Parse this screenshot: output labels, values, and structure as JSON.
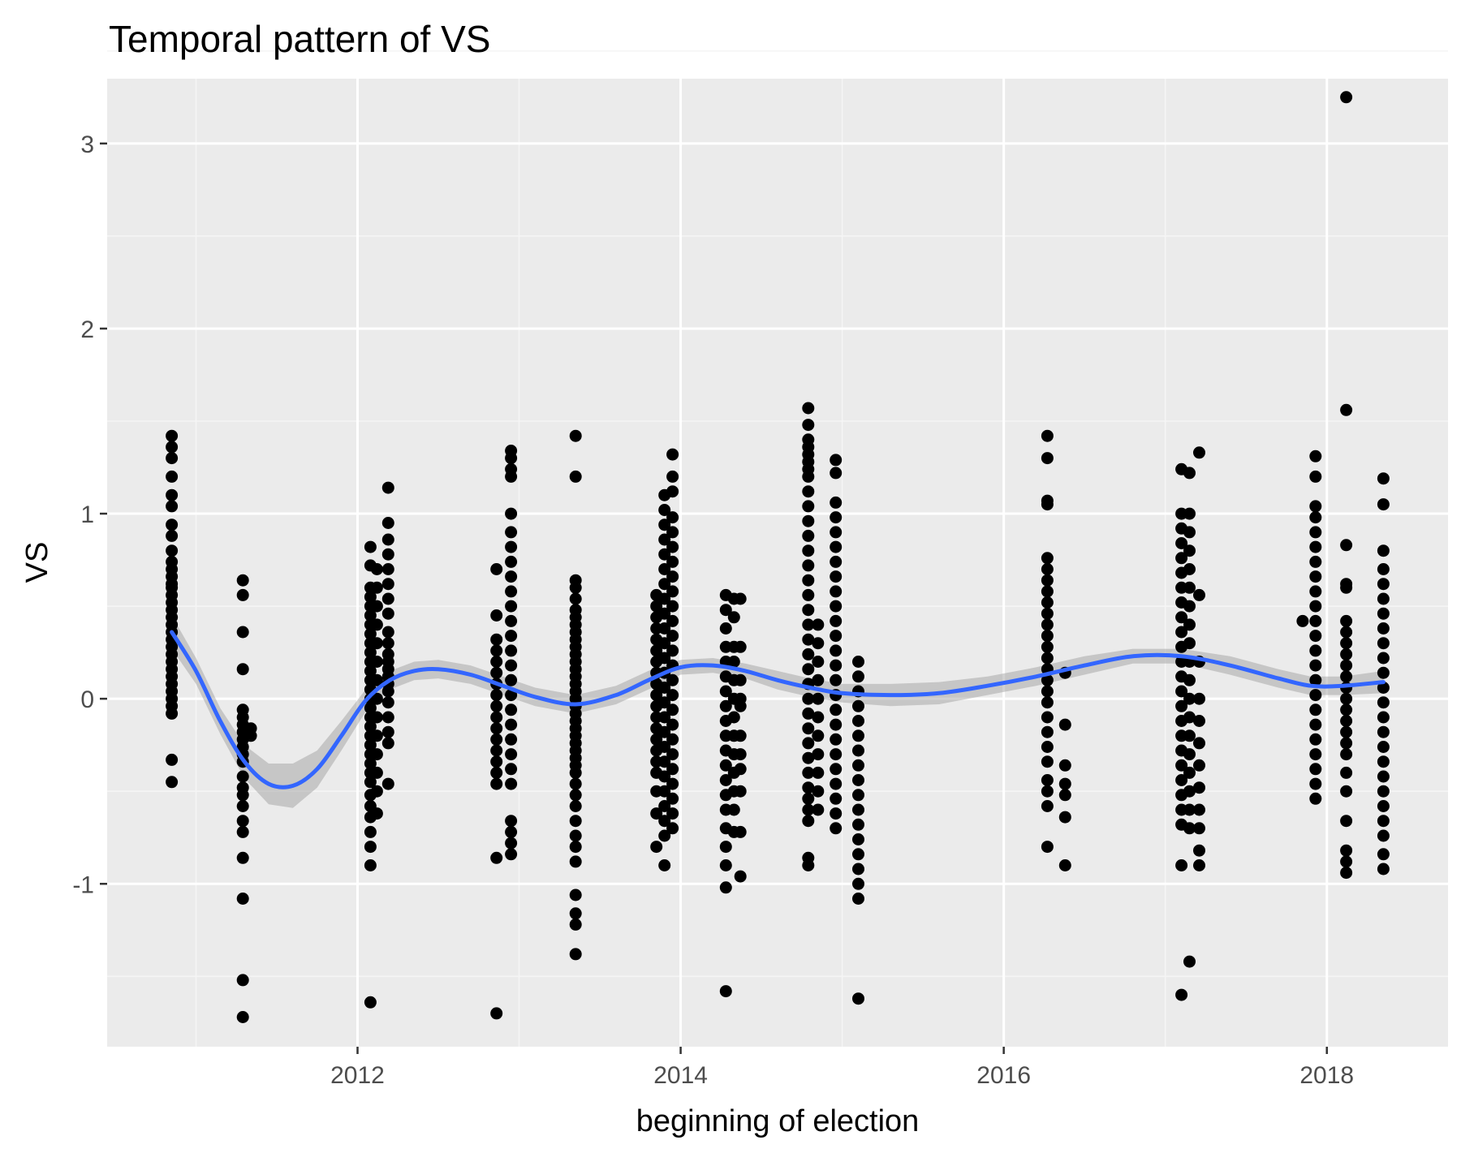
{
  "chart_data": {
    "type": "scatter",
    "title": "Temporal pattern of VS",
    "xlabel": "beginning of election",
    "ylabel": "VS",
    "xlim": [
      2010.45,
      2018.75
    ],
    "ylim": [
      -1.88,
      3.35
    ],
    "x_ticks": [
      2012,
      2014,
      2016,
      2018
    ],
    "x_tick_labels": [
      "2012",
      "2014",
      "2016",
      "2018"
    ],
    "y_ticks": [
      -1,
      0,
      1,
      2,
      3
    ],
    "y_tick_labels": [
      "-1",
      "0",
      "1",
      "2",
      "3"
    ],
    "grid": true,
    "legend": "none",
    "colors": {
      "panel": "#ebebeb",
      "grid_major": "#ffffff",
      "grid_minor": "#f5f5f5",
      "points": "#000000",
      "smooth_line": "#3366ff",
      "confidence_band": "#999999"
    },
    "point_groups": [
      {
        "x": 2010.85,
        "values": [
          1.42,
          1.36,
          1.3,
          1.2,
          1.1,
          1.04,
          0.94,
          0.88,
          0.8,
          0.74,
          0.7,
          0.66,
          0.62,
          0.6,
          0.56,
          0.52,
          0.48,
          0.44,
          0.4,
          0.36,
          0.32,
          0.28,
          0.24,
          0.2,
          0.16,
          0.12,
          0.08,
          0.04,
          0.0,
          -0.04,
          -0.08,
          -0.33,
          -0.45
        ]
      },
      {
        "x": 2011.29,
        "values": [
          0.64,
          0.56,
          0.36,
          0.16,
          -0.06,
          -0.1,
          -0.14,
          -0.18,
          -0.22,
          -0.26,
          -0.3,
          -0.34,
          -0.42,
          -0.48,
          -0.52,
          -0.58,
          -0.66,
          -0.72,
          -0.86,
          -1.08,
          -1.52,
          -1.72
        ]
      },
      {
        "x": 2011.34,
        "values": [
          -0.16,
          -0.2
        ]
      },
      {
        "x": 2012.08,
        "values": [
          0.82,
          0.72,
          0.6,
          0.55,
          0.5,
          0.45,
          0.4,
          0.35,
          0.3,
          0.25,
          0.2,
          0.15,
          0.1,
          0.05,
          0.0,
          -0.05,
          -0.1,
          -0.15,
          -0.2,
          -0.25,
          -0.3,
          -0.35,
          -0.4,
          -0.45,
          -0.52,
          -0.58,
          -0.64,
          -0.72,
          -0.8,
          -0.9,
          -1.64
        ]
      },
      {
        "x": 2012.12,
        "values": [
          0.7,
          0.6,
          0.5,
          0.4,
          0.3,
          0.2,
          0.1,
          0.0,
          -0.1,
          -0.2,
          -0.3,
          -0.4,
          -0.5,
          -0.62
        ]
      },
      {
        "x": 2012.19,
        "values": [
          1.14,
          0.95,
          0.86,
          0.78,
          0.7,
          0.62,
          0.54,
          0.46,
          0.36,
          0.3,
          0.24,
          0.2,
          0.16,
          0.12,
          0.08,
          0.04,
          -0.02,
          -0.1,
          -0.18,
          -0.24,
          -0.46
        ]
      },
      {
        "x": 2012.86,
        "values": [
          0.7,
          0.45,
          0.32,
          0.26,
          0.2,
          0.14,
          0.08,
          0.02,
          -0.04,
          -0.1,
          -0.16,
          -0.22,
          -0.28,
          -0.34,
          -0.4,
          -0.46,
          -0.86,
          -1.7
        ]
      },
      {
        "x": 2012.95,
        "values": [
          1.34,
          1.3,
          1.24,
          1.2,
          1.0,
          0.9,
          0.82,
          0.74,
          0.66,
          0.58,
          0.5,
          0.42,
          0.34,
          0.26,
          0.18,
          0.1,
          0.02,
          -0.06,
          -0.14,
          -0.22,
          -0.3,
          -0.38,
          -0.46,
          -0.66,
          -0.72,
          -0.78,
          -0.84
        ]
      },
      {
        "x": 2013.35,
        "values": [
          1.42,
          1.2,
          0.64,
          0.6,
          0.54,
          0.48,
          0.44,
          0.4,
          0.36,
          0.32,
          0.28,
          0.24,
          0.2,
          0.16,
          0.12,
          0.08,
          0.04,
          0.0,
          -0.04,
          -0.08,
          -0.12,
          -0.16,
          -0.2,
          -0.24,
          -0.28,
          -0.32,
          -0.36,
          -0.4,
          -0.46,
          -0.52,
          -0.58,
          -0.66,
          -0.74,
          -0.8,
          -0.88,
          -1.06,
          -1.16,
          -1.22,
          -1.38
        ]
      },
      {
        "x": 2013.85,
        "values": [
          0.56,
          0.5,
          0.44,
          0.38,
          0.32,
          0.26,
          0.2,
          0.14,
          0.08,
          0.02,
          -0.04,
          -0.1,
          -0.16,
          -0.22,
          -0.28,
          -0.34,
          -0.4,
          -0.5,
          -0.62,
          -0.8
        ]
      },
      {
        "x": 2013.9,
        "values": [
          1.1,
          1.02,
          0.94,
          0.86,
          0.78,
          0.7,
          0.62,
          0.54,
          0.46,
          0.38,
          0.3,
          0.22,
          0.14,
          0.06,
          -0.02,
          -0.1,
          -0.18,
          -0.26,
          -0.34,
          -0.42,
          -0.5,
          -0.58,
          -0.66,
          -0.74,
          -0.9
        ]
      },
      {
        "x": 2013.95,
        "values": [
          1.32,
          1.2,
          1.12,
          0.98,
          0.9,
          0.82,
          0.74,
          0.66,
          0.58,
          0.5,
          0.42,
          0.34,
          0.26,
          0.18,
          0.1,
          0.02,
          -0.06,
          -0.14,
          -0.22,
          -0.3,
          -0.38,
          -0.46,
          -0.54,
          -0.62,
          -0.7
        ]
      },
      {
        "x": 2014.28,
        "values": [
          0.56,
          0.48,
          0.38,
          0.28,
          0.2,
          0.12,
          0.04,
          -0.04,
          -0.12,
          -0.2,
          -0.28,
          -0.36,
          -0.44,
          -0.52,
          -0.6,
          -0.7,
          -0.8,
          -0.9,
          -1.02,
          -1.58
        ]
      },
      {
        "x": 2014.33,
        "values": [
          0.54,
          0.44,
          0.28,
          0.2,
          0.1,
          0.0,
          -0.1,
          -0.2,
          -0.3,
          -0.4,
          -0.5,
          -0.6,
          -0.72
        ]
      },
      {
        "x": 2014.37,
        "values": [
          0.54,
          0.28,
          0.1,
          0.0,
          -0.04,
          -0.2,
          -0.3,
          -0.38,
          -0.5,
          -0.72,
          -0.96
        ]
      },
      {
        "x": 2014.79,
        "values": [
          1.57,
          1.48,
          1.4,
          1.36,
          1.32,
          1.28,
          1.24,
          1.2,
          1.12,
          1.04,
          0.96,
          0.88,
          0.8,
          0.72,
          0.64,
          0.56,
          0.48,
          0.4,
          0.32,
          0.24,
          0.16,
          0.08,
          0.0,
          -0.08,
          -0.16,
          -0.24,
          -0.32,
          -0.4,
          -0.48,
          -0.54,
          -0.6,
          -0.66,
          -0.86,
          -0.9
        ]
      },
      {
        "x": 2014.85,
        "values": [
          0.4,
          0.3,
          0.2,
          0.1,
          0.0,
          -0.1,
          -0.2,
          -0.3,
          -0.4,
          -0.5,
          -0.6
        ]
      },
      {
        "x": 2014.96,
        "values": [
          1.29,
          1.22,
          1.06,
          0.98,
          0.9,
          0.82,
          0.74,
          0.66,
          0.58,
          0.5,
          0.42,
          0.34,
          0.26,
          0.18,
          0.1,
          0.02,
          -0.06,
          -0.14,
          -0.22,
          -0.3,
          -0.38,
          -0.46,
          -0.54,
          -0.62,
          -0.7
        ]
      },
      {
        "x": 2015.1,
        "values": [
          0.2,
          0.12,
          0.04,
          -0.04,
          -0.12,
          -0.2,
          -0.28,
          -0.36,
          -0.44,
          -0.52,
          -0.6,
          -0.68,
          -0.76,
          -0.84,
          -0.92,
          -1.0,
          -1.08,
          -1.62
        ]
      },
      {
        "x": 2016.27,
        "values": [
          1.42,
          1.3,
          1.07,
          1.05,
          0.76,
          0.7,
          0.64,
          0.58,
          0.52,
          0.46,
          0.4,
          0.34,
          0.28,
          0.22,
          0.16,
          0.1,
          0.04,
          -0.02,
          -0.1,
          -0.18,
          -0.26,
          -0.34,
          -0.44,
          -0.5,
          -0.58,
          -0.8
        ]
      },
      {
        "x": 2016.38,
        "values": [
          0.14,
          -0.14,
          -0.36,
          -0.46,
          -0.52,
          -0.64,
          -0.9
        ]
      },
      {
        "x": 2017.1,
        "values": [
          1.24,
          1.0,
          0.92,
          0.84,
          0.76,
          0.68,
          0.6,
          0.52,
          0.44,
          0.36,
          0.28,
          0.2,
          0.12,
          0.04,
          -0.04,
          -0.12,
          -0.2,
          -0.28,
          -0.36,
          -0.44,
          -0.52,
          -0.6,
          -0.68,
          -0.9,
          -1.6
        ]
      },
      {
        "x": 2017.15,
        "values": [
          1.22,
          1.0,
          0.9,
          0.8,
          0.7,
          0.6,
          0.5,
          0.4,
          0.3,
          0.2,
          0.1,
          0.0,
          -0.1,
          -0.2,
          -0.3,
          -0.4,
          -0.5,
          -0.6,
          -0.7,
          -1.42
        ]
      },
      {
        "x": 2017.21,
        "values": [
          1.33,
          0.56,
          0.2,
          0.0,
          -0.12,
          -0.24,
          -0.36,
          -0.48,
          -0.6,
          -0.7,
          -0.82,
          -0.9
        ]
      },
      {
        "x": 2017.85,
        "values": [
          0.42
        ]
      },
      {
        "x": 2017.93,
        "values": [
          1.31,
          1.2,
          1.04,
          0.98,
          0.9,
          0.82,
          0.74,
          0.66,
          0.58,
          0.5,
          0.42,
          0.34,
          0.26,
          0.18,
          0.1,
          0.02,
          -0.06,
          -0.14,
          -0.22,
          -0.3,
          -0.38,
          -0.46,
          -0.54
        ]
      },
      {
        "x": 2018.12,
        "values": [
          3.25,
          1.56,
          0.83,
          0.62,
          0.6,
          0.42,
          0.36,
          0.3,
          0.24,
          0.18,
          0.12,
          0.06,
          0.0,
          -0.06,
          -0.12,
          -0.18,
          -0.24,
          -0.3,
          -0.4,
          -0.5,
          -0.66,
          -0.82,
          -0.88,
          -0.94
        ]
      },
      {
        "x": 2018.35,
        "values": [
          1.19,
          1.05,
          0.8,
          0.7,
          0.62,
          0.54,
          0.46,
          0.38,
          0.3,
          0.22,
          0.14,
          0.06,
          -0.02,
          -0.1,
          -0.18,
          -0.26,
          -0.34,
          -0.42,
          -0.5,
          -0.58,
          -0.66,
          -0.74,
          -0.84,
          -0.92
        ]
      }
    ],
    "smooth": {
      "x": [
        2010.85,
        2011.0,
        2011.15,
        2011.3,
        2011.45,
        2011.6,
        2011.75,
        2011.9,
        2012.05,
        2012.2,
        2012.35,
        2012.5,
        2012.7,
        2012.9,
        2013.1,
        2013.35,
        2013.6,
        2013.8,
        2014.0,
        2014.2,
        2014.4,
        2014.6,
        2014.8,
        2015.0,
        2015.3,
        2015.6,
        2015.9,
        2016.2,
        2016.5,
        2016.8,
        2017.1,
        2017.4,
        2017.7,
        2017.9,
        2018.1,
        2018.35
      ],
      "y": [
        0.36,
        0.15,
        -0.12,
        -0.34,
        -0.46,
        -0.47,
        -0.38,
        -0.2,
        -0.01,
        0.1,
        0.15,
        0.16,
        0.13,
        0.07,
        0.01,
        -0.03,
        0.02,
        0.1,
        0.17,
        0.18,
        0.15,
        0.1,
        0.06,
        0.03,
        0.02,
        0.03,
        0.07,
        0.12,
        0.18,
        0.23,
        0.23,
        0.18,
        0.11,
        0.07,
        0.07,
        0.09
      ],
      "band": [
        0.09,
        0.07,
        0.07,
        0.09,
        0.11,
        0.12,
        0.1,
        0.08,
        0.06,
        0.05,
        0.05,
        0.05,
        0.05,
        0.05,
        0.05,
        0.05,
        0.05,
        0.05,
        0.04,
        0.04,
        0.04,
        0.05,
        0.05,
        0.05,
        0.06,
        0.06,
        0.05,
        0.05,
        0.05,
        0.04,
        0.04,
        0.05,
        0.05,
        0.05,
        0.05,
        0.06
      ]
    }
  }
}
